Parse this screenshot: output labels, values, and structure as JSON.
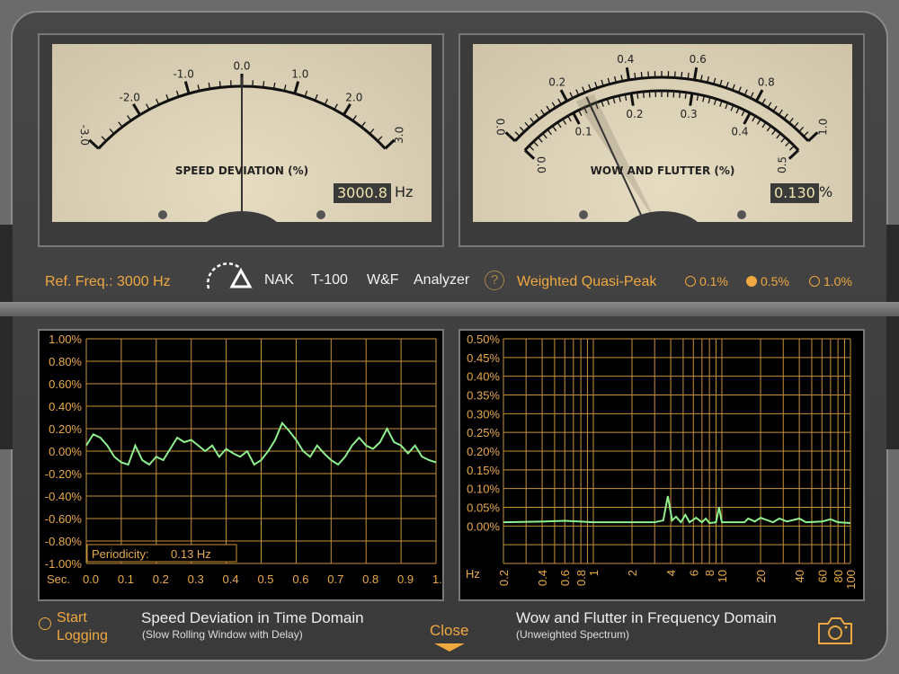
{
  "meters": [
    {
      "title": "SPEED DEVIATION (%)",
      "readout": "3000.8",
      "unit": "Hz",
      "scale": [
        "-3.0",
        "-2.0",
        "-1.0",
        "0.0",
        "1.0",
        "2.0",
        "3.0"
      ],
      "needle_value": 0.0,
      "range": [
        -3,
        3
      ]
    },
    {
      "title": "WOW AND FLUTTER (%)",
      "readout": "0.130",
      "unit": "%",
      "outer_scale": [
        "0.0",
        "0.2",
        "0.4",
        "0.6",
        "0.8",
        "1.0"
      ],
      "inner_scale": [
        "0.0",
        "0.1",
        "0.2",
        "0.3",
        "0.4",
        "0.5"
      ],
      "needle_value": 0.13,
      "range": [
        0,
        0.5
      ]
    }
  ],
  "controls": {
    "ref_freq": "Ref. Freq.: 3000 Hz",
    "brand": [
      "NAK",
      "T-100",
      "W&F",
      "Analyzer"
    ],
    "help_icon": "question-circle-icon",
    "mode": "Weighted Quasi-Peak",
    "ranges": [
      {
        "label": "0.1%",
        "selected": false
      },
      {
        "label": "0.5%",
        "selected": true
      },
      {
        "label": "1.0%",
        "selected": false
      }
    ]
  },
  "colors": {
    "accent": "#f0a840",
    "trace": "#8ef08e",
    "grid": "#c8923c"
  },
  "chart_data": [
    {
      "type": "line",
      "title": "Speed Deviation in Time Domain",
      "subtitle": "(Slow Rolling Window with Delay)",
      "xlabel": "Sec.",
      "xlim": [
        0,
        1
      ],
      "ylim": [
        -1,
        1
      ],
      "xticks": [
        "0.0",
        "0.1",
        "0.2",
        "0.3",
        "0.4",
        "0.5",
        "0.6",
        "0.7",
        "0.8",
        "0.9",
        "1.0"
      ],
      "yticks": [
        "1.00%",
        "0.80%",
        "0.60%",
        "0.40%",
        "0.20%",
        "0.00%",
        "-0.20%",
        "-0.40%",
        "-0.60%",
        "-0.80%",
        "-1.00%"
      ],
      "annotation": {
        "label": "Periodicity:",
        "value": "0.13 Hz"
      },
      "x": [
        0,
        0.02,
        0.04,
        0.06,
        0.08,
        0.1,
        0.12,
        0.14,
        0.16,
        0.18,
        0.2,
        0.22,
        0.24,
        0.26,
        0.28,
        0.3,
        0.32,
        0.34,
        0.36,
        0.38,
        0.4,
        0.42,
        0.44,
        0.46,
        0.48,
        0.5,
        0.52,
        0.54,
        0.56,
        0.58,
        0.6,
        0.62,
        0.64,
        0.66,
        0.68,
        0.7,
        0.72,
        0.74,
        0.76,
        0.78,
        0.8,
        0.82,
        0.84,
        0.86,
        0.88,
        0.9,
        0.92,
        0.94,
        0.96,
        0.98,
        1.0
      ],
      "y": [
        0.05,
        0.15,
        0.12,
        0.05,
        -0.05,
        -0.1,
        -0.12,
        0.05,
        -0.08,
        -0.12,
        -0.05,
        -0.08,
        0.02,
        0.12,
        0.08,
        0.1,
        0.05,
        0.0,
        0.05,
        -0.05,
        0.02,
        -0.02,
        -0.05,
        0.0,
        -0.12,
        -0.08,
        0.0,
        0.1,
        0.25,
        0.18,
        0.1,
        0.0,
        -0.05,
        0.05,
        -0.02,
        -0.08,
        -0.12,
        -0.05,
        0.05,
        0.12,
        0.05,
        0.02,
        0.08,
        0.2,
        0.08,
        0.05,
        -0.02,
        0.05,
        -0.05,
        -0.08,
        -0.1
      ]
    },
    {
      "type": "line",
      "title": "Wow and Flutter in Frequency Domain",
      "subtitle": "(Unweighted Spectrum)",
      "xlabel": "Hz",
      "xscale": "log",
      "xlim": [
        0.2,
        100
      ],
      "ylim": [
        -0.1,
        0.5
      ],
      "xticks": [
        "0.2",
        "0.4",
        "0.6",
        "0.8",
        "1",
        "2",
        "4",
        "6",
        "8",
        "10",
        "20",
        "40",
        "60",
        "80",
        "100"
      ],
      "yticks": [
        "0.50%",
        "0.45%",
        "0.40%",
        "0.35%",
        "0.30%",
        "0.25%",
        "0.20%",
        "0.15%",
        "0.10%",
        "0.05%",
        "0.00%"
      ],
      "x": [
        0.2,
        0.4,
        0.6,
        0.8,
        1,
        2,
        3,
        3.5,
        3.8,
        4.1,
        4.4,
        4.8,
        5.2,
        5.6,
        6.3,
        7,
        7.5,
        8,
        9,
        9.5,
        10,
        12,
        15,
        16,
        18,
        20,
        25,
        28,
        32,
        40,
        45,
        60,
        70,
        80,
        100
      ],
      "y": [
        0.01,
        0.012,
        0.014,
        0.012,
        0.01,
        0.01,
        0.01,
        0.015,
        0.08,
        0.015,
        0.025,
        0.01,
        0.03,
        0.01,
        0.022,
        0.01,
        0.02,
        0.008,
        0.01,
        0.05,
        0.01,
        0.01,
        0.01,
        0.02,
        0.012,
        0.022,
        0.01,
        0.02,
        0.012,
        0.02,
        0.01,
        0.012,
        0.018,
        0.01,
        0.008
      ]
    }
  ],
  "footer": {
    "logging": [
      "Start",
      "Logging"
    ],
    "close": "Close",
    "camera_icon": "camera-icon"
  }
}
